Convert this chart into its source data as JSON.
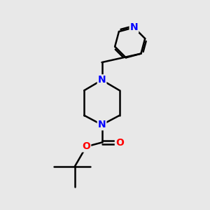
{
  "bg_color": "#e8e8e8",
  "atom_color_N": "#0000FF",
  "atom_color_O": "#FF0000",
  "atom_color_C": "#000000",
  "bond_color": "#000000",
  "bond_width": 1.8,
  "font_size_atom": 10,
  "fig_size": [
    3.0,
    3.0
  ],
  "dpi": 100,
  "xlim": [
    0,
    10
  ],
  "ylim": [
    0,
    10
  ]
}
